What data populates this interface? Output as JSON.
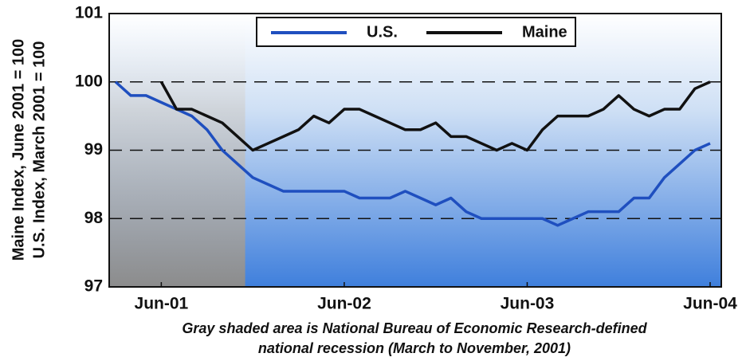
{
  "chart_data": {
    "type": "line",
    "ylabel": [
      "Maine Index, June 2001 = 100",
      "U.S. Index, March 2001 = 100"
    ],
    "note": [
      "Gray shaded area is National Bureau of Economic Research-defined",
      "national recession (March to November, 2001)"
    ],
    "categories": [
      null,
      null,
      null,
      "Jun-01",
      null,
      null,
      null,
      null,
      null,
      null,
      null,
      null,
      null,
      null,
      null,
      "Jun-02",
      null,
      null,
      null,
      null,
      null,
      null,
      null,
      null,
      null,
      null,
      null,
      "Jun-03",
      null,
      null,
      null,
      null,
      null,
      null,
      null,
      null,
      null,
      null,
      null,
      "Jun-04"
    ],
    "shade": {
      "from": 0,
      "to": 8,
      "color": "#8c8c8c"
    },
    "series": [
      {
        "name": "U.S.",
        "color": "#1f4fbf",
        "values": [
          100,
          99.8,
          99.8,
          99.7,
          99.6,
          99.5,
          99.3,
          99.0,
          98.8,
          98.6,
          98.5,
          98.4,
          98.4,
          98.4,
          98.4,
          98.4,
          98.3,
          98.3,
          98.3,
          98.4,
          98.3,
          98.2,
          98.3,
          98.1,
          98.0,
          98.0,
          98.0,
          98.0,
          98.0,
          97.9,
          98.0,
          98.1,
          98.1,
          98.1,
          98.3,
          98.3,
          98.6,
          98.8,
          99.0,
          99.1
        ]
      },
      {
        "name": "Maine",
        "color": "#111111",
        "values": [
          null,
          null,
          null,
          100,
          99.6,
          99.6,
          99.5,
          99.4,
          99.2,
          99.0,
          99.1,
          99.2,
          99.3,
          99.5,
          99.4,
          99.6,
          99.6,
          99.5,
          99.4,
          99.3,
          99.3,
          99.4,
          99.2,
          99.2,
          99.1,
          99.0,
          99.1,
          99.0,
          99.3,
          99.5,
          99.5,
          99.5,
          99.6,
          99.8,
          99.6,
          99.5,
          99.6,
          99.6,
          99.9,
          100.0
        ]
      }
    ],
    "ylim": [
      97,
      101
    ],
    "yticks": [
      97,
      98,
      99,
      100,
      101
    ],
    "grid": true,
    "legend": "top"
  }
}
